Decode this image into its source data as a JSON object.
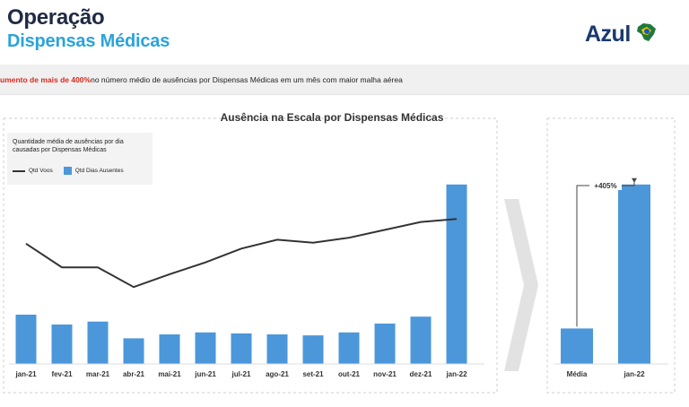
{
  "header": {
    "title": "Operação",
    "subtitle": "Dispensas Médicas",
    "logo_text": "Azul"
  },
  "banner": {
    "highlight": "umento de mais de 400%",
    "text": " no número médio de ausências por Dispensas Médicas em um mês com maior malha aérea"
  },
  "chart_data": [
    {
      "type": "bar",
      "title": "Ausência na Escala por Dispensas Médicas",
      "caption": "Quantidade média de ausências por dia causadas por Dispensas Médicas",
      "legend": {
        "line": "Qtd Voos",
        "bar": "Qtd Dias Ausentes",
        "placement": "top-left"
      },
      "categories": [
        "jan-21",
        "fev-21",
        "mar-21",
        "abr-21",
        "mai-21",
        "jun-21",
        "jul-21",
        "ago-21",
        "set-21",
        "out-21",
        "nov-21",
        "dez-21",
        "jan-22"
      ],
      "series": [
        {
          "name": "Qtd Dias Ausentes",
          "kind": "bar",
          "color": "#4b97da",
          "values": [
            25,
            20,
            21.5,
            13,
            15,
            16,
            15.5,
            15,
            14.5,
            16,
            20.5,
            24,
            91
          ]
        },
        {
          "name": "Qtd Voos",
          "kind": "line",
          "color": "#333333",
          "values": [
            61,
            49,
            49,
            39,
            45.5,
            51.5,
            58.5,
            63,
            61.5,
            64,
            68,
            72,
            73.5
          ]
        }
      ],
      "ylim": [
        0,
        100
      ],
      "grid": false
    },
    {
      "type": "bar",
      "categories": [
        "Média",
        "jan-22"
      ],
      "values": [
        18,
        91
      ],
      "annotation": "+405%",
      "ylim": [
        0,
        100
      ]
    }
  ]
}
